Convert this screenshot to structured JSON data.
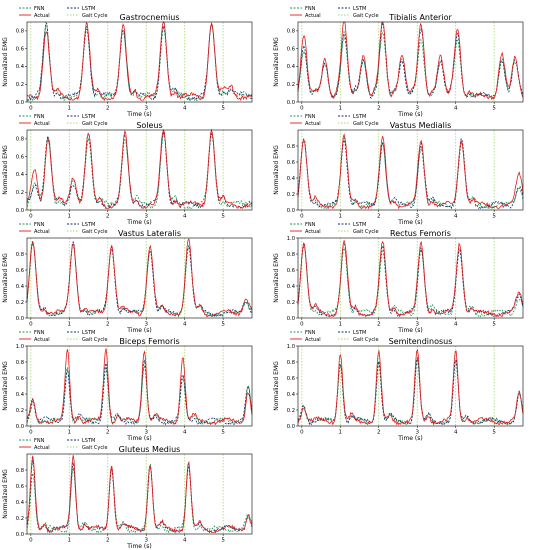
{
  "colors": {
    "fnn": "#1a9850",
    "actual": "#e31a1c",
    "lstm": "#08306b",
    "gait_cycle": "#a6d96a",
    "axis": "#000000"
  },
  "legend": {
    "fnn": "FNN",
    "actual": "Actual",
    "lstm": "LSTM",
    "gait_cycle": "Gait Cycle"
  },
  "common": {
    "xlabel": "Time (s)",
    "ylabel": "Normalized EMG",
    "xticks": [
      0,
      1,
      2,
      3,
      4,
      5
    ],
    "xlim": [
      -0.1,
      5.75
    ]
  },
  "chart_data": [
    {
      "type": "line",
      "title": "Gastrocnemius",
      "ylim": [
        0,
        0.9
      ],
      "yticks": [
        0.0,
        0.2,
        0.4,
        0.6,
        0.8
      ],
      "gait_cycle_lines": [
        0.0,
        1.0,
        2.0,
        3.0,
        4.0,
        5.0
      ],
      "peaks": [
        {
          "t": 0.4,
          "actual": 0.82,
          "fnn": 0.84,
          "lstm": 0.86
        },
        {
          "t": 1.45,
          "actual": 0.87,
          "fnn": 0.86,
          "lstm": 0.85
        },
        {
          "t": 2.4,
          "actual": 0.85,
          "fnn": 0.83,
          "lstm": 0.84
        },
        {
          "t": 3.45,
          "actual": 0.9,
          "fnn": 0.86,
          "lstm": 0.88
        },
        {
          "t": 4.7,
          "actual": 0.92,
          "fnn": 0.85,
          "lstm": 0.87
        },
        {
          "t": 5.2,
          "actual": 0.18,
          "fnn": 0.16,
          "lstm": 0.15
        }
      ]
    },
    {
      "type": "line",
      "title": "Tibialis Anterior",
      "ylim": [
        0,
        0.9
      ],
      "yticks": [
        0.0,
        0.2,
        0.4,
        0.6,
        0.8
      ],
      "gait_cycle_lines": [
        0.0,
        1.0,
        2.0,
        3.0,
        4.0,
        5.0
      ],
      "peaks": [
        {
          "t": 0.05,
          "actual": 0.75,
          "fnn": 0.6,
          "lstm": 0.65
        },
        {
          "t": 0.6,
          "actual": 0.5,
          "fnn": 0.45,
          "lstm": 0.42
        },
        {
          "t": 1.1,
          "actual": 0.88,
          "fnn": 0.7,
          "lstm": 0.8
        },
        {
          "t": 1.6,
          "actual": 0.55,
          "fnn": 0.5,
          "lstm": 0.5
        },
        {
          "t": 2.1,
          "actual": 0.9,
          "fnn": 0.75,
          "lstm": 0.85
        },
        {
          "t": 2.6,
          "actual": 0.55,
          "fnn": 0.5,
          "lstm": 0.5
        },
        {
          "t": 3.1,
          "actual": 0.88,
          "fnn": 0.7,
          "lstm": 0.8
        },
        {
          "t": 3.6,
          "actual": 0.5,
          "fnn": 0.45,
          "lstm": 0.48
        },
        {
          "t": 4.05,
          "actual": 0.85,
          "fnn": 0.7,
          "lstm": 0.75
        },
        {
          "t": 5.2,
          "actual": 0.55,
          "fnn": 0.5,
          "lstm": 0.5
        },
        {
          "t": 5.55,
          "actual": 0.45,
          "fnn": 0.4,
          "lstm": 0.42
        }
      ]
    },
    {
      "type": "line",
      "title": "Soleus",
      "ylim": [
        0,
        0.9
      ],
      "yticks": [
        0.0,
        0.2,
        0.4,
        0.6,
        0.8
      ],
      "gait_cycle_lines": [
        0.0,
        1.0,
        2.0,
        3.0,
        4.0,
        5.0
      ],
      "peaks": [
        {
          "t": 0.1,
          "actual": 0.45,
          "fnn": 0.3,
          "lstm": 0.3
        },
        {
          "t": 0.45,
          "actual": 0.78,
          "fnn": 0.82,
          "lstm": 0.8
        },
        {
          "t": 1.1,
          "actual": 0.38,
          "fnn": 0.3,
          "lstm": 0.32
        },
        {
          "t": 1.5,
          "actual": 0.85,
          "fnn": 0.82,
          "lstm": 0.84
        },
        {
          "t": 2.45,
          "actual": 0.84,
          "fnn": 0.82,
          "lstm": 0.83
        },
        {
          "t": 3.45,
          "actual": 0.9,
          "fnn": 0.86,
          "lstm": 0.88
        },
        {
          "t": 4.7,
          "actual": 0.92,
          "fnn": 0.86,
          "lstm": 0.87
        }
      ]
    },
    {
      "type": "line",
      "title": "Vastus Medialis",
      "ylim": [
        0,
        1.0
      ],
      "yticks": [
        0.0,
        0.2,
        0.4,
        0.6,
        0.8
      ],
      "gait_cycle_lines": [
        0.0,
        1.0,
        2.0,
        3.0,
        4.0,
        5.0
      ],
      "peaks": [
        {
          "t": 0.05,
          "actual": 0.9,
          "fnn": 0.85,
          "lstm": 0.88
        },
        {
          "t": 1.1,
          "actual": 0.92,
          "fnn": 0.86,
          "lstm": 0.88
        },
        {
          "t": 2.1,
          "actual": 0.88,
          "fnn": 0.84,
          "lstm": 0.86
        },
        {
          "t": 3.1,
          "actual": 0.86,
          "fnn": 0.8,
          "lstm": 0.83
        },
        {
          "t": 4.15,
          "actual": 0.9,
          "fnn": 0.85,
          "lstm": 0.86
        },
        {
          "t": 5.65,
          "actual": 0.45,
          "fnn": 0.3,
          "lstm": 0.32
        }
      ]
    },
    {
      "type": "line",
      "title": "Vastus Lateralis",
      "ylim": [
        0,
        1.0
      ],
      "yticks": [
        0.0,
        0.2,
        0.4,
        0.6,
        0.8
      ],
      "gait_cycle_lines": [
        0.0,
        1.0,
        2.0,
        3.0,
        4.0,
        5.0
      ],
      "peaks": [
        {
          "t": 0.05,
          "actual": 0.95,
          "fnn": 0.9,
          "lstm": 0.92
        },
        {
          "t": 1.1,
          "actual": 0.95,
          "fnn": 0.9,
          "lstm": 0.93
        },
        {
          "t": 2.1,
          "actual": 0.93,
          "fnn": 0.88,
          "lstm": 0.9
        },
        {
          "t": 3.1,
          "actual": 0.92,
          "fnn": 0.86,
          "lstm": 0.88
        },
        {
          "t": 4.1,
          "actual": 0.96,
          "fnn": 0.9,
          "lstm": 0.92
        },
        {
          "t": 5.6,
          "actual": 0.25,
          "fnn": 0.22,
          "lstm": 0.22
        }
      ]
    },
    {
      "type": "line",
      "title": "Rectus Femoris",
      "ylim": [
        0,
        1.0
      ],
      "yticks": [
        0.0,
        0.2,
        0.4,
        0.6,
        0.8,
        1.0
      ],
      "gait_cycle_lines": [
        0.0,
        1.0,
        2.0,
        3.0,
        4.0,
        5.0
      ],
      "peaks": [
        {
          "t": 0.05,
          "actual": 0.95,
          "fnn": 0.88,
          "lstm": 0.92
        },
        {
          "t": 1.1,
          "actual": 0.95,
          "fnn": 0.88,
          "lstm": 0.9
        },
        {
          "t": 2.1,
          "actual": 0.93,
          "fnn": 0.86,
          "lstm": 0.88
        },
        {
          "t": 3.1,
          "actual": 0.92,
          "fnn": 0.86,
          "lstm": 0.88
        },
        {
          "t": 4.1,
          "actual": 0.94,
          "fnn": 0.86,
          "lstm": 0.88
        },
        {
          "t": 5.65,
          "actual": 0.3,
          "fnn": 0.26,
          "lstm": 0.28
        }
      ]
    },
    {
      "type": "line",
      "title": "Biceps Femoris",
      "ylim": [
        0,
        1.0
      ],
      "yticks": [
        0.0,
        0.2,
        0.4,
        0.6,
        0.8,
        1.0
      ],
      "gait_cycle_lines": [
        0.0,
        1.0,
        2.0,
        3.0,
        4.0,
        5.0
      ],
      "peaks": [
        {
          "t": 0.05,
          "actual": 0.3,
          "fnn": 0.35,
          "lstm": 0.33
        },
        {
          "t": 0.95,
          "actual": 0.95,
          "fnn": 0.75,
          "lstm": 0.72
        },
        {
          "t": 1.95,
          "actual": 0.98,
          "fnn": 0.75,
          "lstm": 0.78
        },
        {
          "t": 2.95,
          "actual": 0.98,
          "fnn": 0.78,
          "lstm": 0.8
        },
        {
          "t": 3.95,
          "actual": 0.88,
          "fnn": 0.6,
          "lstm": 0.62
        },
        {
          "t": 5.65,
          "actual": 0.45,
          "fnn": 0.5,
          "lstm": 0.48
        }
      ]
    },
    {
      "type": "line",
      "title": "Semitendinosus",
      "ylim": [
        0,
        1.0
      ],
      "yticks": [
        0.0,
        0.2,
        0.4,
        0.6,
        0.8,
        1.0
      ],
      "gait_cycle_lines": [
        0.0,
        1.0,
        2.0,
        3.0,
        4.0,
        5.0
      ],
      "peaks": [
        {
          "t": 0.05,
          "actual": 0.25,
          "fnn": 0.28,
          "lstm": 0.26
        },
        {
          "t": 1.0,
          "actual": 0.92,
          "fnn": 0.8,
          "lstm": 0.82
        },
        {
          "t": 2.0,
          "actual": 0.93,
          "fnn": 0.82,
          "lstm": 0.84
        },
        {
          "t": 3.0,
          "actual": 0.94,
          "fnn": 0.83,
          "lstm": 0.85
        },
        {
          "t": 4.0,
          "actual": 0.95,
          "fnn": 0.8,
          "lstm": 0.82
        },
        {
          "t": 5.65,
          "actual": 0.4,
          "fnn": 0.42,
          "lstm": 0.4
        }
      ]
    },
    {
      "type": "line",
      "title": "Gluteus Medius",
      "ylim": [
        0,
        1.0
      ],
      "yticks": [
        0.0,
        0.2,
        0.4,
        0.6,
        0.8
      ],
      "gait_cycle_lines": [
        0.0,
        1.0,
        2.0,
        3.0,
        4.0,
        5.0
      ],
      "peaks": [
        {
          "t": 0.05,
          "actual": 0.95,
          "fnn": 0.8,
          "lstm": 0.88
        },
        {
          "t": 1.1,
          "actual": 0.98,
          "fnn": 0.85,
          "lstm": 0.9
        },
        {
          "t": 2.1,
          "actual": 0.88,
          "fnn": 0.82,
          "lstm": 0.85
        },
        {
          "t": 3.1,
          "actual": 0.9,
          "fnn": 0.84,
          "lstm": 0.86
        },
        {
          "t": 4.1,
          "actual": 0.9,
          "fnn": 0.84,
          "lstm": 0.86
        },
        {
          "t": 5.65,
          "actual": 0.25,
          "fnn": 0.22,
          "lstm": 0.24
        }
      ]
    }
  ]
}
